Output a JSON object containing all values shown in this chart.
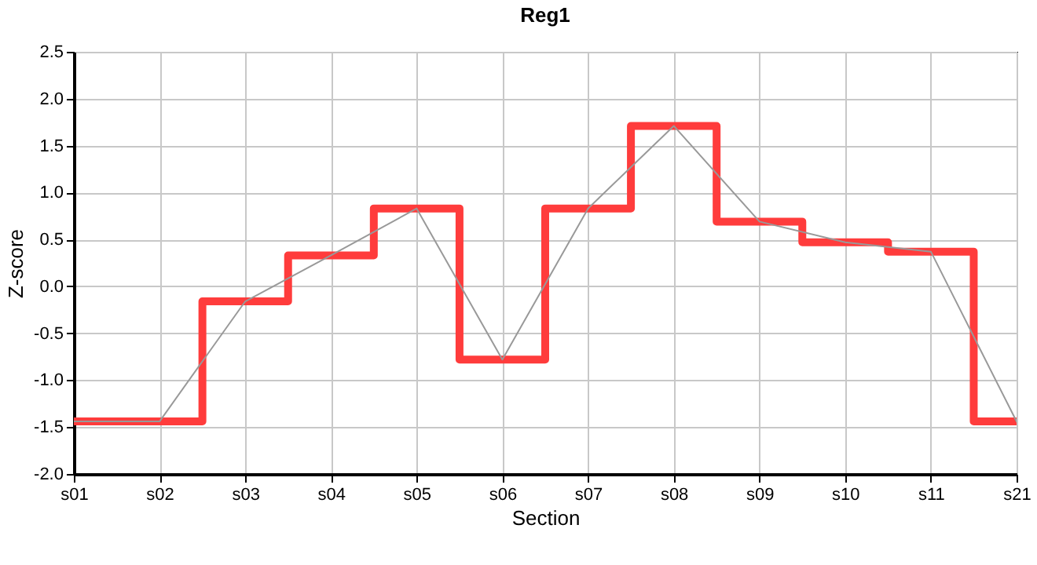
{
  "chart_data": {
    "type": "step",
    "title": "Reg1",
    "xlabel": "Section",
    "ylabel": "Z-score",
    "categories": [
      "s01",
      "s02",
      "s03",
      "s04",
      "s05",
      "s06",
      "s07",
      "s08",
      "s09",
      "s10",
      "s11",
      "s21"
    ],
    "series": [
      {
        "color": "#ff3c3c",
        "values": [
          -1.44,
          -1.44,
          -0.16,
          0.33,
          0.83,
          -0.78,
          0.83,
          1.71,
          0.69,
          0.47,
          0.37,
          -1.44
        ]
      },
      {
        "type": "line",
        "color": "#999999",
        "values": [
          -1.44,
          -1.44,
          -0.16,
          0.33,
          0.83,
          -0.78,
          0.83,
          1.71,
          0.69,
          0.47,
          0.37,
          -1.44
        ]
      }
    ],
    "ylim": [
      -2,
      2.5
    ],
    "yticks": [
      {
        "value": -2,
        "label": "-2.0"
      },
      -1.5,
      {
        "value": -1,
        "label": "-1.0"
      },
      -0.5,
      {
        "value": 0,
        "label": "0.0"
      },
      0.5,
      {
        "value": 1,
        "label": "1.0"
      },
      1.5,
      {
        "value": 2,
        "label": "2.0"
      },
      2.5
    ],
    "grid": true,
    "marker": "none"
  }
}
